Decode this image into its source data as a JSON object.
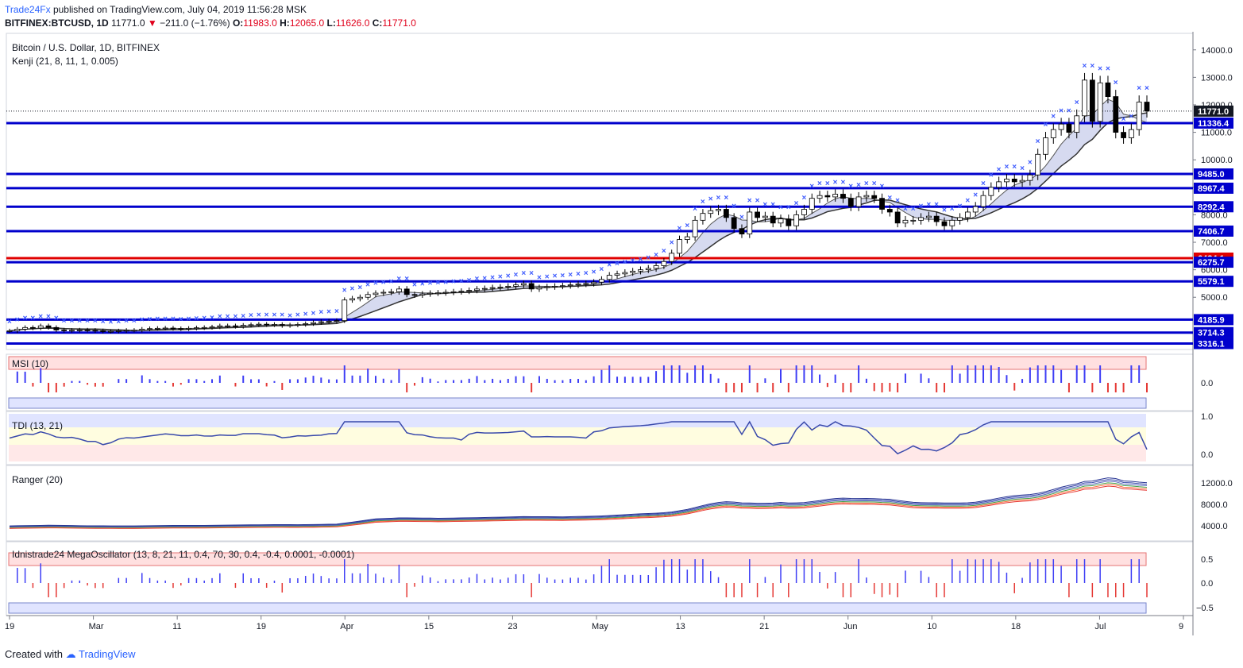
{
  "header": {
    "brand": "Trade24Fx",
    "published": "published on TradingView.com, July 04, 2019 11:56:28 MSK",
    "symbol": "BITFINEX:BTCUSD, 1D",
    "last": "11771.0",
    "change": "−211.0 (−1.76%)",
    "o_label": "O:",
    "o": "11983.0",
    "h_label": "H:",
    "h": "12065.0",
    "l_label": "L:",
    "l": "11626.0",
    "c_label": "C:",
    "c": "11771.0"
  },
  "footer": {
    "created_with": "Created with",
    "brand": "TradingView"
  },
  "colors": {
    "up": "#ffffff",
    "down": "#000000",
    "level": "#0000cc",
    "level_red": "#e00000",
    "marker": "#3d5afe",
    "cloud": "#c5cae9",
    "msi": "#3d3df5",
    "msi_green": "#4caf50",
    "msi_red": "#e53935"
  },
  "chart_data": [
    {
      "type": "candlestick",
      "title": "Bitcoin / U.S. Dollar, 1D, BITFINEX",
      "indicator": "Kenji (21, 8, 11, 1, 0.005)",
      "x_ticks": [
        "19",
        "Mar",
        "11",
        "19",
        "Apr",
        "15",
        "23",
        "May",
        "13",
        "21",
        "Jun",
        "10",
        "18",
        "Jul",
        "9"
      ],
      "y_ticks": [
        5000,
        6000,
        7000,
        8000,
        9000,
        10000,
        11000,
        12000,
        13000,
        14000
      ],
      "y_range": [
        3100,
        14600
      ],
      "levels": [
        {
          "value": 11771.0,
          "label": "11771.0",
          "style": "last"
        },
        {
          "value": 11336.4,
          "label": "11336.4",
          "color": "blue"
        },
        {
          "value": 9485.0,
          "label": "9485.0",
          "color": "blue"
        },
        {
          "value": 8967.4,
          "label": "8967.4",
          "color": "blue"
        },
        {
          "value": 8292.4,
          "label": "8292.4",
          "color": "blue"
        },
        {
          "value": 7406.7,
          "label": "7406.7",
          "color": "blue"
        },
        {
          "value": 6424.1,
          "label": "6424.1",
          "color": "red"
        },
        {
          "value": 6275.7,
          "label": "6275.7",
          "color": "blue"
        },
        {
          "value": 5579.1,
          "label": "5579.1",
          "color": "blue"
        },
        {
          "value": 4185.9,
          "label": "4185.9",
          "color": "blue"
        },
        {
          "value": 3714.3,
          "label": "3714.3",
          "color": "blue"
        },
        {
          "value": 3316.1,
          "label": "3316.1",
          "color": "blue"
        }
      ],
      "closes": [
        3780,
        3840,
        3900,
        3880,
        3960,
        3900,
        3810,
        3790,
        3800,
        3810,
        3800,
        3780,
        3760,
        3760,
        3780,
        3800,
        3800,
        3840,
        3860,
        3870,
        3880,
        3860,
        3850,
        3870,
        3890,
        3900,
        3920,
        3960,
        3960,
        3940,
        3980,
        4000,
        4020,
        4000,
        4010,
        3970,
        3990,
        4010,
        4040,
        4080,
        4110,
        4130,
        4150,
        4900,
        4950,
        5000,
        5100,
        5150,
        5180,
        5200,
        5300,
        5100,
        5080,
        5120,
        5150,
        5160,
        5180,
        5200,
        5220,
        5250,
        5300,
        5320,
        5350,
        5370,
        5400,
        5450,
        5500,
        5300,
        5350,
        5380,
        5400,
        5420,
        5450,
        5480,
        5500,
        5550,
        5650,
        5800,
        5850,
        5900,
        5950,
        6000,
        6050,
        6150,
        6300,
        6600,
        7100,
        7200,
        7800,
        8050,
        8150,
        8200,
        7900,
        7500,
        7300,
        8100,
        7900,
        7950,
        7700,
        7850,
        7600,
        8000,
        8200,
        8600,
        8700,
        8650,
        8750,
        8600,
        8300,
        8650,
        8700,
        8600,
        8200,
        8100,
        7700,
        7800,
        7800,
        7900,
        7950,
        7750,
        7600,
        7800,
        7900,
        8100,
        8300,
        8700,
        9000,
        9200,
        9300,
        9200,
        9250,
        9450,
        10200,
        10800,
        11100,
        11300,
        11000,
        11600,
        12900,
        11400,
        12800,
        12300,
        11000,
        10800,
        11100,
        12100,
        11771
      ],
      "subpanes": [
        {
          "name": "MSI (10)",
          "y_ticks": [
            0.0
          ]
        },
        {
          "name": "TDI (13, 21)",
          "y_ticks": [
            1.0,
            0.0
          ]
        },
        {
          "name": "Ranger (20)",
          "y_ticks": [
            12000.0,
            8000.0,
            4000.0
          ]
        },
        {
          "name": "Idnistrade24 MegaOscillator (13, 8, 21, 11, 0.4, 70, 30, 0.4, -0.4, 0.0001, -0.0001)",
          "y_ticks": [
            0.5,
            0.0,
            -0.5
          ]
        }
      ]
    }
  ]
}
